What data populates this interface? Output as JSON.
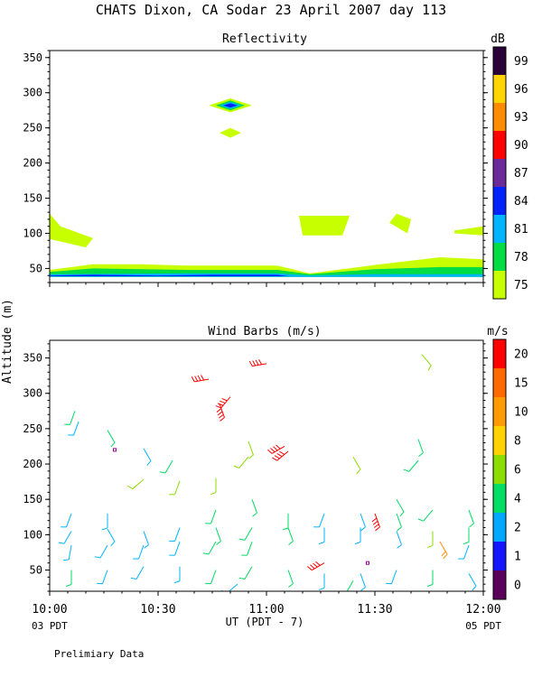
{
  "title": "CHATS Dixon, CA  Sodar  23 April 2007  day 113",
  "footer": "Prelimiary Data",
  "ylabel": "Altitude (m)",
  "xlabel": "UT  (PDT - 7)",
  "x_ticks": [
    "10:00",
    "10:30",
    "11:00",
    "11:30",
    "12:00"
  ],
  "x_sublabels": {
    "left": "03 PDT",
    "right": "05 PDT"
  },
  "chart_data": [
    {
      "type": "heatmap",
      "title": "Reflectivity",
      "colorbar_unit": "dB",
      "colorbar_ticks": [
        "99",
        "96",
        "93",
        "90",
        "87",
        "84",
        "81",
        "78",
        "75"
      ],
      "colorbar_colors": [
        "#2a0038",
        "#ffd400",
        "#ff8c00",
        "#ff0000",
        "#6a2a9a",
        "#0022ff",
        "#00b4ff",
        "#00dd44",
        "#c8ff00"
      ],
      "y_ticks": [
        "350",
        "300",
        "250",
        "200",
        "150",
        "100",
        "50"
      ],
      "xlim": [
        "10:00",
        "12:00"
      ],
      "ylim": [
        30,
        360
      ],
      "regions": [
        {
          "level": 75,
          "points": [
            [
              0,
              128
            ],
            [
              3,
              110
            ],
            [
              12,
              93
            ],
            [
              10,
              80
            ],
            [
              0,
              92
            ]
          ]
        },
        {
          "level": 75,
          "points": [
            [
              69,
              125
            ],
            [
              83,
              125
            ],
            [
              81,
              97
            ],
            [
              70,
              97
            ]
          ]
        },
        {
          "level": 75,
          "points": [
            [
              96,
              128
            ],
            [
              100,
              120
            ],
            [
              99,
              100
            ],
            [
              94,
              115
            ]
          ]
        },
        {
          "level": 75,
          "points": [
            [
              112,
              104
            ],
            [
              120,
              110
            ],
            [
              120,
              97
            ],
            [
              112,
              100
            ]
          ]
        },
        {
          "level": 75,
          "points": [
            [
              0,
              48
            ],
            [
              12,
              56
            ],
            [
              25,
              56
            ],
            [
              38,
              54
            ],
            [
              63,
              54
            ],
            [
              72,
              43
            ],
            [
              90,
              55
            ],
            [
              108,
              66
            ],
            [
              120,
              63
            ],
            [
              120,
              38
            ],
            [
              0,
              38
            ]
          ]
        },
        {
          "level": 78,
          "points": [
            [
              0,
              45
            ],
            [
              12,
              50
            ],
            [
              38,
              48
            ],
            [
              63,
              48
            ],
            [
              72,
              42
            ],
            [
              90,
              49
            ],
            [
              108,
              52
            ],
            [
              120,
              52
            ],
            [
              120,
              38
            ],
            [
              0,
              38
            ]
          ]
        },
        {
          "level": 81,
          "points": [
            [
              0,
              42
            ],
            [
              40,
              43
            ],
            [
              63,
              43
            ],
            [
              72,
              40
            ],
            [
              90,
              42
            ],
            [
              120,
              42
            ],
            [
              120,
              38
            ],
            [
              0,
              38
            ]
          ]
        },
        {
          "level": 84,
          "points": [
            [
              0,
              40
            ],
            [
              12,
              41
            ],
            [
              30,
              40
            ],
            [
              45,
              41
            ],
            [
              63,
              41
            ],
            [
              66,
              39
            ],
            [
              0,
              39
            ]
          ]
        },
        {
          "level": 75,
          "points": [
            [
              44,
              282
            ],
            [
              50,
              292
            ],
            [
              56,
              282
            ],
            [
              50,
              272
            ]
          ]
        },
        {
          "level": 75,
          "points": [
            [
              47,
              243
            ],
            [
              50,
              250
            ],
            [
              53,
              243
            ],
            [
              50,
              236
            ]
          ]
        },
        {
          "level": 78,
          "points": [
            [
              46,
              282
            ],
            [
              50,
              289
            ],
            [
              54,
              282
            ],
            [
              50,
              275
            ]
          ]
        },
        {
          "level": 81,
          "points": [
            [
              47,
              282
            ],
            [
              50,
              287
            ],
            [
              53,
              282
            ],
            [
              50,
              277
            ]
          ]
        },
        {
          "level": 84,
          "points": [
            [
              48,
              282
            ],
            [
              50,
              285
            ],
            [
              52,
              282
            ],
            [
              50,
              279
            ]
          ]
        }
      ]
    },
    {
      "type": "scatter",
      "title": "Wind Barbs (m/s)",
      "colorbar_unit": "m/s",
      "colorbar_ticks": [
        "20",
        "15",
        "10",
        "8",
        "6",
        "4",
        "2",
        "1",
        "0"
      ],
      "colorbar_colors": [
        "#ff0000",
        "#ff6a00",
        "#ff9a00",
        "#ffd200",
        "#8cdc00",
        "#00dc64",
        "#00a8ff",
        "#1414ff",
        "#5a005a"
      ],
      "y_ticks": [
        "350",
        "300",
        "250",
        "200",
        "150",
        "100",
        "50"
      ],
      "xlim": [
        "10:00",
        "12:00"
      ],
      "ylim": [
        20,
        375
      ],
      "barbs": [
        [
          7,
          275,
          4,
          200,
          5
        ],
        [
          16,
          248,
          4,
          150,
          5
        ],
        [
          26,
          222,
          3,
          150,
          6
        ],
        [
          34,
          205,
          4,
          210,
          5
        ],
        [
          36,
          176,
          5,
          200,
          6
        ],
        [
          46,
          180,
          5,
          180,
          6
        ],
        [
          55,
          232,
          5,
          160,
          5
        ],
        [
          55,
          210,
          5,
          220,
          5
        ],
        [
          65,
          225,
          20,
          240,
          4
        ],
        [
          84,
          210,
          5,
          150,
          5
        ],
        [
          102,
          235,
          4,
          160,
          6
        ],
        [
          102,
          205,
          4,
          220,
          5
        ],
        [
          103,
          355,
          5,
          140,
          6
        ],
        [
          44,
          320,
          20,
          260,
          4
        ],
        [
          47,
          285,
          20,
          160,
          5
        ],
        [
          50,
          295,
          20,
          220,
          5
        ],
        [
          60,
          342,
          20,
          260,
          4
        ],
        [
          66,
          218,
          20,
          230,
          4
        ],
        [
          90,
          130,
          20,
          160,
          4
        ],
        [
          108,
          90,
          10,
          150,
          4
        ],
        [
          6,
          130,
          3,
          200,
          5
        ],
        [
          6,
          105,
          3,
          210,
          5
        ],
        [
          6,
          85,
          3,
          190,
          5
        ],
        [
          16,
          130,
          3,
          180,
          5
        ],
        [
          16,
          108,
          3,
          150,
          5
        ],
        [
          16,
          85,
          3,
          210,
          5
        ],
        [
          26,
          105,
          3,
          160,
          5
        ],
        [
          26,
          85,
          2,
          200,
          5
        ],
        [
          36,
          110,
          3,
          200,
          6
        ],
        [
          36,
          90,
          3,
          200,
          6
        ],
        [
          46,
          135,
          4,
          200,
          6
        ],
        [
          46,
          110,
          4,
          160,
          6
        ],
        [
          46,
          90,
          4,
          210,
          6
        ],
        [
          56,
          150,
          4,
          160,
          6
        ],
        [
          56,
          110,
          4,
          210,
          6
        ],
        [
          56,
          90,
          4,
          200,
          6
        ],
        [
          66,
          130,
          4,
          180,
          5
        ],
        [
          66,
          110,
          4,
          160,
          5
        ],
        [
          76,
          130,
          2,
          200,
          5
        ],
        [
          76,
          110,
          3,
          180,
          5
        ],
        [
          86,
          130,
          3,
          160,
          5
        ],
        [
          86,
          110,
          3,
          180,
          5
        ],
        [
          96,
          150,
          4,
          150,
          6
        ],
        [
          96,
          130,
          4,
          160,
          5
        ],
        [
          96,
          105,
          3,
          160,
          6
        ],
        [
          106,
          135,
          4,
          220,
          5
        ],
        [
          106,
          105,
          5,
          180,
          5
        ],
        [
          116,
          135,
          4,
          160,
          5
        ],
        [
          116,
          110,
          4,
          180,
          5
        ],
        [
          116,
          85,
          3,
          200,
          5
        ],
        [
          6,
          50,
          4,
          180,
          5
        ],
        [
          16,
          50,
          3,
          200,
          5
        ],
        [
          26,
          55,
          3,
          210,
          5
        ],
        [
          36,
          55,
          3,
          180,
          6
        ],
        [
          46,
          50,
          4,
          200,
          5
        ],
        [
          56,
          55,
          4,
          210,
          5
        ],
        [
          66,
          50,
          4,
          160,
          5
        ],
        [
          76,
          45,
          3,
          180,
          5
        ],
        [
          86,
          45,
          3,
          160,
          5
        ],
        [
          96,
          50,
          3,
          200,
          5
        ],
        [
          106,
          50,
          4,
          180,
          5
        ],
        [
          116,
          45,
          3,
          150,
          5
        ],
        [
          8,
          260,
          3,
          200,
          5
        ],
        [
          26,
          178,
          6,
          230,
          4
        ],
        [
          76,
          60,
          20,
          240,
          4
        ],
        [
          84,
          35,
          4,
          210,
          6
        ],
        [
          52,
          30,
          3,
          230,
          6
        ]
      ],
      "calm": [
        [
          18,
          220
        ],
        [
          88,
          60
        ]
      ]
    }
  ]
}
